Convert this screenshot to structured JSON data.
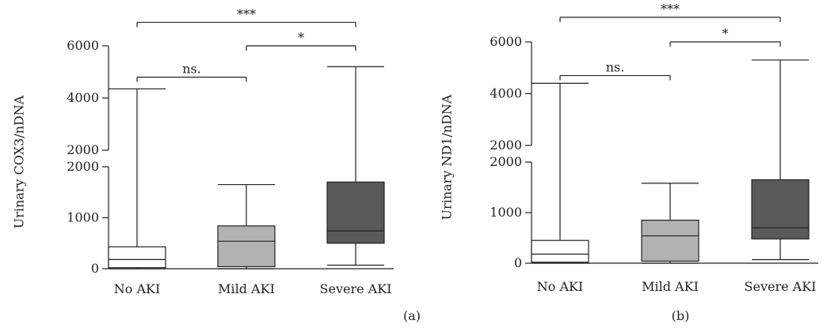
{
  "chart_data": [
    {
      "type": "box",
      "panel_label": "(a)",
      "ylabel": "Urinary COX3/nDNA",
      "categories": [
        "No AKI",
        "Mild AKI",
        "Severe AKI"
      ],
      "y_axis_break": {
        "lower_range": [
          0,
          2000
        ],
        "upper_range": [
          2000,
          6000
        ],
        "lower_ticks": [
          0,
          1000,
          2000
        ],
        "upper_ticks": [
          2000,
          4000,
          6000
        ]
      },
      "boxes": [
        {
          "category": "No AKI",
          "min": 0,
          "q1": 20,
          "median": 180,
          "q3": 430,
          "max": 4350,
          "color": "#ffffff"
        },
        {
          "category": "Mild AKI",
          "min": 0,
          "q1": 40,
          "median": 540,
          "q3": 840,
          "max": 1650,
          "color": "#b2b2b2"
        },
        {
          "category": "Severe AKI",
          "min": 70,
          "q1": 500,
          "median": 740,
          "q3": 1700,
          "max": 5200,
          "color": "#595959"
        }
      ],
      "significance": [
        {
          "from": "No AKI",
          "to": "Mild AKI",
          "label": "ns.",
          "y": 4800
        },
        {
          "from": "Mild AKI",
          "to": "Severe AKI",
          "label": "*",
          "y": 6000
        },
        {
          "from": "No AKI",
          "to": "Severe AKI",
          "label": "***",
          "y": 6900
        }
      ]
    },
    {
      "type": "box",
      "panel_label": "(b)",
      "ylabel": "Urinary ND1/nDNA",
      "categories": [
        "No AKI",
        "Mild AKI",
        "Severe AKI"
      ],
      "y_axis_break": {
        "lower_range": [
          0,
          2000
        ],
        "upper_range": [
          2000,
          6000
        ],
        "lower_ticks": [
          0,
          1000,
          2000
        ],
        "upper_ticks": [
          2000,
          4000,
          6000
        ]
      },
      "boxes": [
        {
          "category": "No AKI",
          "min": 0,
          "q1": 20,
          "median": 180,
          "q3": 450,
          "max": 4400,
          "color": "#ffffff"
        },
        {
          "category": "Mild AKI",
          "min": 0,
          "q1": 40,
          "median": 540,
          "q3": 850,
          "max": 1580,
          "color": "#b2b2b2"
        },
        {
          "category": "Severe AKI",
          "min": 70,
          "q1": 480,
          "median": 700,
          "q3": 1650,
          "max": 5300,
          "color": "#595959"
        }
      ],
      "significance": [
        {
          "from": "No AKI",
          "to": "Mild AKI",
          "label": "ns.",
          "y": 4700
        },
        {
          "from": "Mild AKI",
          "to": "Severe AKI",
          "label": "*",
          "y": 6000
        },
        {
          "from": "No AKI",
          "to": "Severe AKI",
          "label": "***",
          "y": 6950
        }
      ]
    }
  ]
}
